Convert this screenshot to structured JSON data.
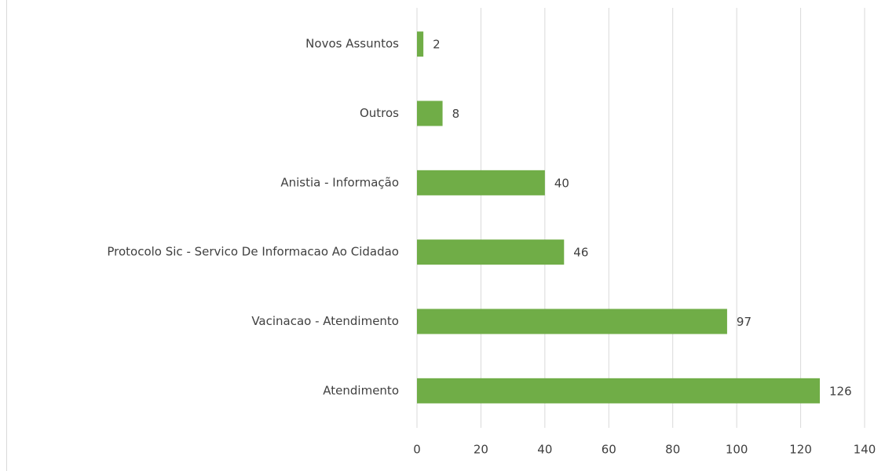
{
  "chart_data": {
    "type": "barh",
    "categories": [
      "Novos Assuntos",
      "Outros",
      "Anistia - Informação",
      "Protocolo Sic - Servico De Informacao Ao Cidadao",
      "Vacinacao - Atendimento",
      "Atendimento"
    ],
    "values": [
      2,
      8,
      40,
      46,
      97,
      126
    ],
    "color": "#70ad47",
    "xlim": [
      0,
      140
    ],
    "xticks": [
      0,
      20,
      40,
      60,
      80,
      100,
      120,
      140
    ],
    "grid": true
  }
}
